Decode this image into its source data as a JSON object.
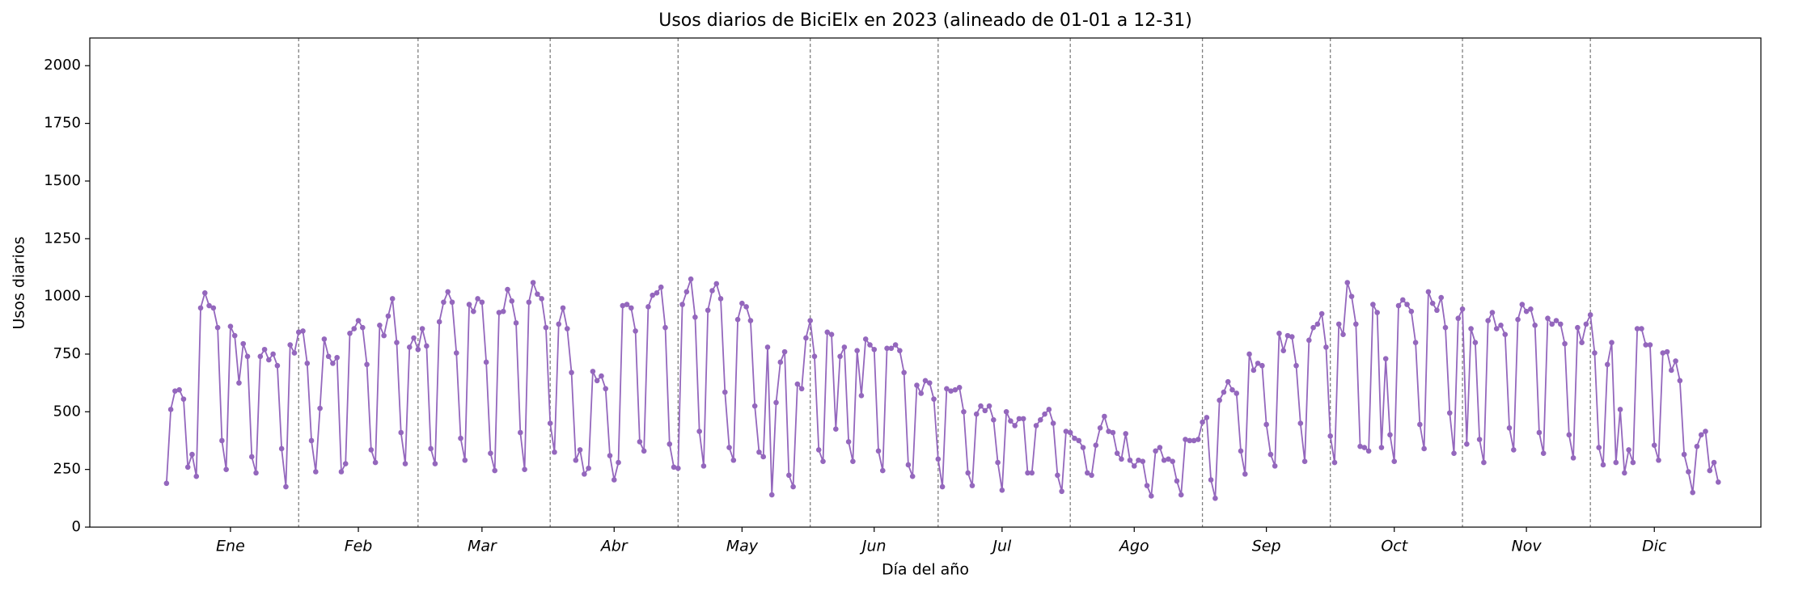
{
  "chart_data": {
    "type": "line",
    "title": "Usos diarios de BiciElx en 2023 (alineado de 01-01 a 12-31)",
    "xlabel": "Día del año",
    "ylabel": "Usos diarios",
    "x": [
      1,
      2,
      3,
      4,
      5,
      6,
      7,
      8,
      9,
      10,
      11,
      12,
      13,
      14,
      15,
      16,
      17,
      18,
      19,
      20,
      21,
      22,
      23,
      24,
      25,
      26,
      27,
      28,
      29,
      30,
      31,
      32,
      33,
      34,
      35,
      36,
      37,
      38,
      39,
      40,
      41,
      42,
      43,
      44,
      45,
      46,
      47,
      48,
      49,
      50,
      51,
      52,
      53,
      54,
      55,
      56,
      57,
      58,
      59,
      60,
      61,
      62,
      63,
      64,
      65,
      66,
      67,
      68,
      69,
      70,
      71,
      72,
      73,
      74,
      75,
      76,
      77,
      78,
      79,
      80,
      81,
      82,
      83,
      84,
      85,
      86,
      87,
      88,
      89,
      90,
      91,
      92,
      93,
      94,
      95,
      96,
      97,
      98,
      99,
      100,
      101,
      102,
      103,
      104,
      105,
      106,
      107,
      108,
      109,
      110,
      111,
      112,
      113,
      114,
      115,
      116,
      117,
      118,
      119,
      120,
      121,
      122,
      123,
      124,
      125,
      126,
      127,
      128,
      129,
      130,
      131,
      132,
      133,
      134,
      135,
      136,
      137,
      138,
      139,
      140,
      141,
      142,
      143,
      144,
      145,
      146,
      147,
      148,
      149,
      150,
      151,
      152,
      153,
      154,
      155,
      156,
      157,
      158,
      159,
      160,
      161,
      162,
      163,
      164,
      165,
      166,
      167,
      168,
      169,
      170,
      171,
      172,
      173,
      174,
      175,
      176,
      177,
      178,
      179,
      180,
      181,
      182,
      183,
      184,
      185,
      186,
      187,
      188,
      189,
      190,
      191,
      192,
      193,
      194,
      195,
      196,
      197,
      198,
      199,
      200,
      201,
      202,
      203,
      204,
      205,
      206,
      207,
      208,
      209,
      210,
      211,
      212,
      213,
      214,
      215,
      216,
      217,
      218,
      219,
      220,
      221,
      222,
      223,
      224,
      225,
      226,
      227,
      228,
      229,
      230,
      231,
      232,
      233,
      234,
      235,
      236,
      237,
      238,
      239,
      240,
      241,
      242,
      243,
      244,
      245,
      246,
      247,
      248,
      249,
      250,
      251,
      252,
      253,
      254,
      255,
      256,
      257,
      258,
      259,
      260,
      261,
      262,
      263,
      264,
      265,
      266,
      267,
      268,
      269,
      270,
      271,
      272,
      273,
      274,
      275,
      276,
      277,
      278,
      279,
      280,
      281,
      282,
      283,
      284,
      285,
      286,
      287,
      288,
      289,
      290,
      291,
      292,
      293,
      294,
      295,
      296,
      297,
      298,
      299,
      300,
      301,
      302,
      303,
      304,
      305,
      306,
      307,
      308,
      309,
      310,
      311,
      312,
      313,
      314,
      315,
      316,
      317,
      318,
      319,
      320,
      321,
      322,
      323,
      324,
      325,
      326,
      327,
      328,
      329,
      330,
      331,
      332,
      333,
      334,
      335,
      336,
      337,
      338,
      339,
      340,
      341,
      342,
      343,
      344,
      345,
      346,
      347,
      348,
      349,
      350,
      351,
      352,
      353,
      354,
      355,
      356,
      357,
      358,
      359,
      360,
      361,
      362,
      363,
      364,
      365
    ],
    "series": [
      {
        "name": "Usos diarios",
        "color": "#9467bd",
        "values": [
          190,
          510,
          590,
          595,
          555,
          260,
          315,
          220,
          950,
          1015,
          960,
          950,
          865,
          375,
          250,
          870,
          830,
          625,
          795,
          740,
          305,
          235,
          740,
          770,
          725,
          750,
          700,
          340,
          175,
          790,
          755,
          845,
          850,
          710,
          375,
          240,
          515,
          815,
          740,
          710,
          735,
          240,
          275,
          840,
          860,
          895,
          865,
          705,
          335,
          280,
          875,
          830,
          915,
          990,
          800,
          410,
          275,
          780,
          820,
          770,
          860,
          785,
          340,
          275,
          890,
          975,
          1020,
          975,
          755,
          385,
          290,
          965,
          935,
          990,
          975,
          715,
          320,
          245,
          930,
          935,
          1030,
          980,
          885,
          410,
          250,
          975,
          1060,
          1010,
          990,
          865,
          450,
          325,
          880,
          950,
          860,
          670,
          290,
          335,
          230,
          255,
          675,
          635,
          655,
          600,
          310,
          205,
          280,
          960,
          965,
          950,
          850,
          370,
          330,
          955,
          1005,
          1015,
          1040,
          865,
          360,
          260,
          255,
          965,
          1020,
          1075,
          910,
          415,
          265,
          940,
          1025,
          1055,
          990,
          585,
          345,
          290,
          900,
          970,
          955,
          895,
          525,
          325,
          305,
          780,
          140,
          540,
          715,
          760,
          225,
          175,
          620,
          600,
          820,
          895,
          740,
          335,
          285,
          845,
          835,
          425,
          740,
          780,
          370,
          285,
          765,
          570,
          815,
          790,
          770,
          330,
          245,
          775,
          775,
          790,
          765,
          670,
          270,
          220,
          615,
          580,
          635,
          625,
          555,
          295,
          175,
          600,
          590,
          595,
          605,
          500,
          235,
          180,
          490,
          525,
          505,
          525,
          465,
          280,
          160,
          500,
          460,
          440,
          470,
          470,
          235,
          235,
          440,
          465,
          490,
          510,
          450,
          225,
          155,
          415,
          410,
          385,
          375,
          345,
          235,
          225,
          355,
          430,
          480,
          415,
          410,
          320,
          295,
          405,
          290,
          265,
          290,
          285,
          180,
          135,
          330,
          345,
          290,
          295,
          285,
          200,
          140,
          380,
          375,
          375,
          380,
          455,
          475,
          205,
          125,
          550,
          585,
          630,
          595,
          580,
          330,
          230,
          750,
          680,
          710,
          700,
          445,
          315,
          265,
          840,
          765,
          830,
          825,
          700,
          450,
          285,
          810,
          865,
          880,
          925,
          780,
          395,
          280,
          880,
          835,
          1060,
          1000,
          880,
          350,
          345,
          330,
          965,
          930,
          345,
          730,
          400,
          285,
          960,
          985,
          965,
          935,
          800,
          445,
          340,
          1020,
          970,
          940,
          995,
          865,
          495,
          320,
          905,
          945,
          360,
          860,
          800,
          380,
          280,
          895,
          930,
          860,
          875,
          835,
          430,
          335,
          900,
          965,
          935,
          945,
          875,
          410,
          320,
          905,
          880,
          895,
          880,
          795,
          400,
          300,
          865,
          800,
          880,
          920,
          755,
          345,
          270,
          705,
          800,
          280,
          510,
          235,
          335,
          280,
          860,
          860,
          790,
          790,
          355,
          290,
          755,
          760,
          680,
          720,
          635,
          315,
          240,
          150,
          350,
          400,
          415,
          245,
          280,
          195
        ]
      }
    ],
    "xlim": [
      -17,
      375
    ],
    "ylim": [
      0,
      2120
    ],
    "yticks": [
      0,
      250,
      500,
      750,
      1000,
      1250,
      1500,
      1750,
      2000
    ],
    "xticks": [
      {
        "value": 16,
        "label": "Ene"
      },
      {
        "value": 46,
        "label": "Feb"
      },
      {
        "value": 75,
        "label": "Mar"
      },
      {
        "value": 106,
        "label": "Abr"
      },
      {
        "value": 136,
        "label": "May"
      },
      {
        "value": 167,
        "label": "Jun"
      },
      {
        "value": 197,
        "label": "Jul"
      },
      {
        "value": 228,
        "label": "Ago"
      },
      {
        "value": 259,
        "label": "Sep"
      },
      {
        "value": 289,
        "label": "Oct"
      },
      {
        "value": 320,
        "label": "Nov"
      },
      {
        "value": 350,
        "label": "Dic"
      }
    ],
    "month_boundaries": [
      32,
      60,
      91,
      121,
      152,
      182,
      213,
      244,
      274,
      305,
      335
    ],
    "boundary_color": "#808080"
  }
}
